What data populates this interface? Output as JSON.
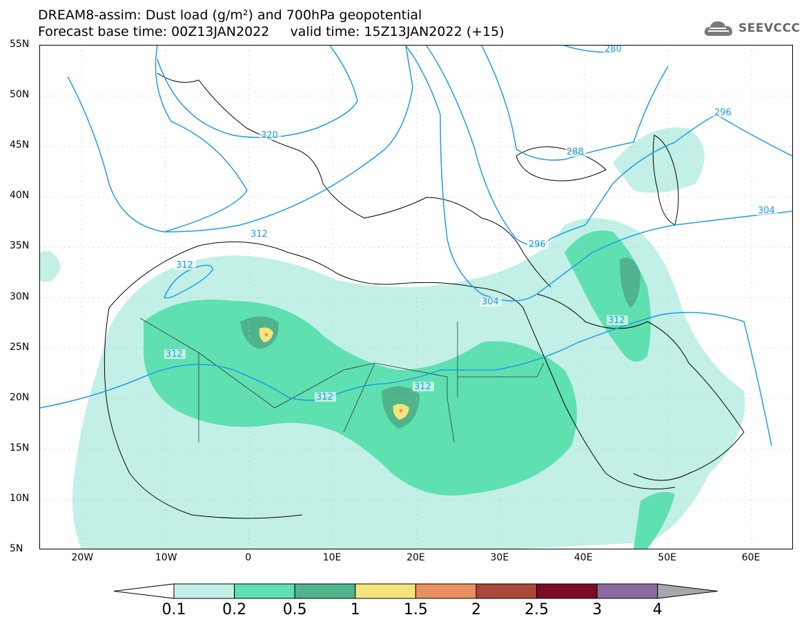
{
  "header": {
    "line1": "DREAM8-assim: Dust load (g/m²) and 700hPa geopotential",
    "line2": "Forecast base time: 00Z13JAN2022     valid time: 15Z13JAN2022 (+15)"
  },
  "logo": {
    "text": "SEEVCCC",
    "icon": "cloud-icon"
  },
  "map": {
    "lat_ticks": [
      "55N",
      "50N",
      "45N",
      "40N",
      "35N",
      "30N",
      "25N",
      "20N",
      "15N",
      "10N",
      "5N"
    ],
    "lon_ticks": [
      "20W",
      "10W",
      "0",
      "10E",
      "20E",
      "30E",
      "40E",
      "50E",
      "60E"
    ],
    "contour_labels": [
      "280",
      "296",
      "288",
      "320",
      "304",
      "312",
      "296",
      "304",
      "312",
      "312",
      "312",
      "312",
      "312"
    ]
  },
  "colorbar": {
    "levels": [
      "0.1",
      "0.2",
      "0.5",
      "1",
      "1.5",
      "2",
      "2.5",
      "3",
      "4"
    ],
    "colors": [
      "#c2f0e6",
      "#5fe0b0",
      "#4fb48c",
      "#f5e47a",
      "#e89060",
      "#a84838",
      "#7a0c2a",
      "#8a6aa0",
      "#a8a8a8"
    ]
  }
}
